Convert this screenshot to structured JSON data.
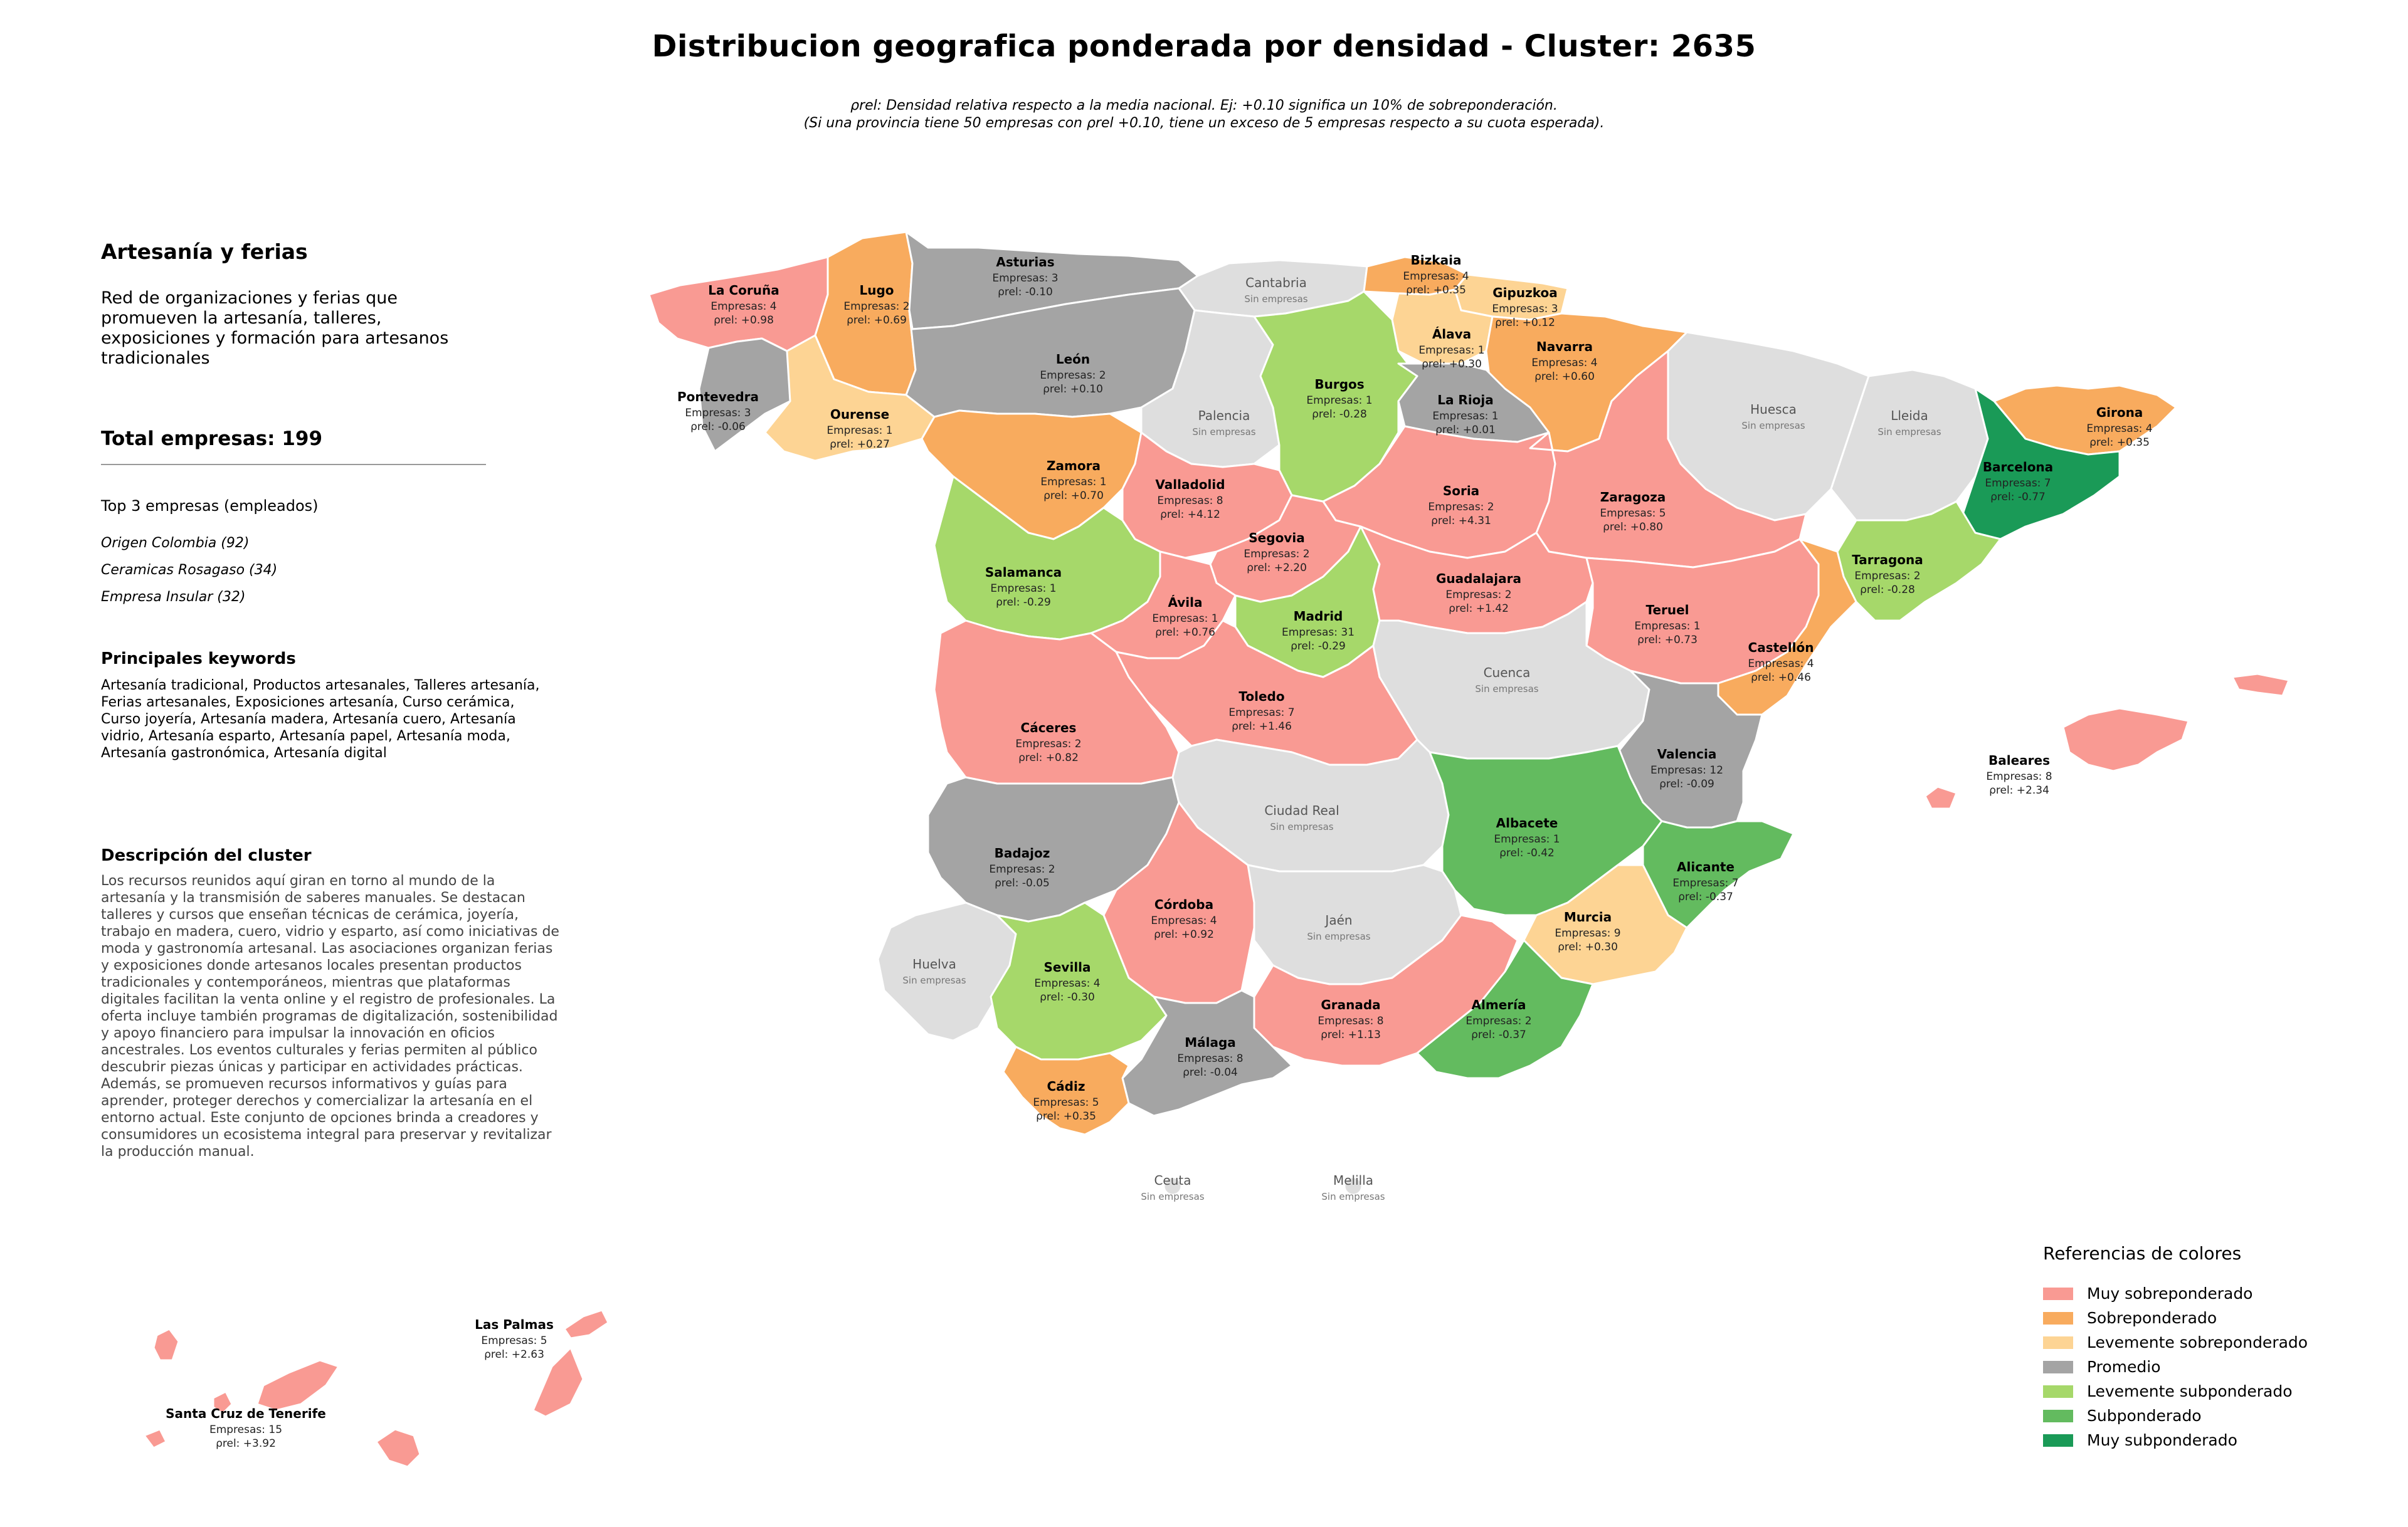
{
  "title": "Distribucion geografica ponderada por densidad - Cluster: 2635",
  "subtitle_line1": "ρrel: Densidad relativa respecto a la media nacional. Ej: +0.10 significa un 10% de sobreponderación.",
  "subtitle_line2": "(Si una provincia tiene 50 empresas con ρrel +0.10, tiene un exceso de 5 empresas respecto a su cuota esperada).",
  "panel": {
    "heading": "Artesanía y ferias",
    "intro": "Red de organizaciones y ferias que promueven la artesanía, talleres, exposiciones y formación para artesanos tradicionales",
    "total_label": "Total empresas: 199",
    "top_label": "Top 3 empresas (empleados)",
    "top_companies": [
      "Origen Colombia (92)",
      "Ceramicas Rosagaso (34)",
      "Empresa Insular (32)"
    ],
    "keywords_heading": "Principales keywords",
    "keywords": "Artesanía tradicional, Productos artesanales, Talleres artesanía, Ferias artesanales, Exposiciones artesanía, Curso cerámica, Curso joyería, Artesanía madera, Artesanía cuero, Artesanía vidrio, Artesanía esparto, Artesanía papel, Artesanía moda, Artesanía gastronómica, Artesanía digital",
    "description_heading": "Descripción del cluster",
    "description": "Los recursos reunidos aquí giran en torno al mundo de la artesanía y la transmisión de saberes manuales. Se destacan talleres y cursos que enseñan técnicas de cerámica, joyería, trabajo en madera, cuero, vidrio y esparto, así como iniciativas de moda y gastronomía artesanal. Las asociaciones organizan ferias y exposiciones donde artesanos locales presentan productos tradicionales y contemporáneos, mientras que plataformas digitales facilitan la venta online y el registro de profesionales. La oferta incluye también programas de digitalización, sostenibilidad y apoyo financiero para impulsar la innovación en oficios ancestrales. Los eventos culturales y ferias permiten al público descubrir piezas únicas y participar en actividades prácticas. Además, se promueven recursos informativos y guías para aprender, proteger derechos y comercializar la artesanía en el entorno actual. Este conjunto de opciones brinda a creadores y consumidores un ecosistema integral para preservar y revitalizar la producción manual."
  },
  "colors": {
    "muy_sobre": "#f99a93",
    "sobre": "#f8ab5e",
    "lev_sobre": "#fdd494",
    "promedio": "#a4a4a4",
    "lev_sub": "#a6d86a",
    "sub": "#63bb5f",
    "muy_sub": "#1a9a57",
    "sin": "#dedede"
  },
  "no_companies_text": "Sin empresas",
  "provinces": [
    {
      "name": "La Coruña",
      "cat": "muy_sobre",
      "line1": "Empresas: 4",
      "line2": "ρrel: +0.98"
    },
    {
      "name": "Lugo",
      "cat": "sobre",
      "line1": "Empresas: 2",
      "line2": "ρrel: +0.69"
    },
    {
      "name": "Asturias",
      "cat": "promedio",
      "line1": "Empresas: 3",
      "line2": "ρrel: -0.10"
    },
    {
      "name": "Cantabria",
      "cat": "sin",
      "line1": "Sin empresas",
      "line2": ""
    },
    {
      "name": "Bizkaia",
      "cat": "sobre",
      "line1": "Empresas: 4",
      "line2": "ρrel: +0.35"
    },
    {
      "name": "Gipuzkoa",
      "cat": "lev_sobre",
      "line1": "Empresas: 3",
      "line2": "ρrel: +0.12"
    },
    {
      "name": "Álava",
      "cat": "lev_sobre",
      "line1": "Empresas: 1",
      "line2": "ρrel: +0.30"
    },
    {
      "name": "Navarra",
      "cat": "sobre",
      "line1": "Empresas: 4",
      "line2": "ρrel: +0.60"
    },
    {
      "name": "Pontevedra",
      "cat": "promedio",
      "line1": "Empresas: 3",
      "line2": "ρrel: -0.06"
    },
    {
      "name": "Ourense",
      "cat": "lev_sobre",
      "line1": "Empresas: 1",
      "line2": "ρrel: +0.27"
    },
    {
      "name": "León",
      "cat": "promedio",
      "line1": "Empresas: 2",
      "line2": "ρrel: +0.10"
    },
    {
      "name": "Palencia",
      "cat": "sin",
      "line1": "Sin empresas",
      "line2": ""
    },
    {
      "name": "Burgos",
      "cat": "lev_sub",
      "line1": "Empresas: 1",
      "line2": "ρrel: -0.28"
    },
    {
      "name": "La Rioja",
      "cat": "promedio",
      "line1": "Empresas: 1",
      "line2": "ρrel: +0.01"
    },
    {
      "name": "Huesca",
      "cat": "sin",
      "line1": "Sin empresas",
      "line2": ""
    },
    {
      "name": "Lleida",
      "cat": "sin",
      "line1": "Sin empresas",
      "line2": ""
    },
    {
      "name": "Girona",
      "cat": "sobre",
      "line1": "Empresas: 4",
      "line2": "ρrel: +0.35"
    },
    {
      "name": "Barcelona",
      "cat": "muy_sub",
      "line1": "Empresas: 7",
      "line2": "ρrel: -0.77"
    },
    {
      "name": "Zamora",
      "cat": "sobre",
      "line1": "Empresas: 1",
      "line2": "ρrel: +0.70"
    },
    {
      "name": "Valladolid",
      "cat": "muy_sobre",
      "line1": "Empresas: 8",
      "line2": "ρrel: +4.12"
    },
    {
      "name": "Soria",
      "cat": "muy_sobre",
      "line1": "Empresas: 2",
      "line2": "ρrel: +4.31"
    },
    {
      "name": "Zaragoza",
      "cat": "muy_sobre",
      "line1": "Empresas: 5",
      "line2": "ρrel: +0.80"
    },
    {
      "name": "Tarragona",
      "cat": "lev_sub",
      "line1": "Empresas: 2",
      "line2": "ρrel: -0.28"
    },
    {
      "name": "Salamanca",
      "cat": "lev_sub",
      "line1": "Empresas: 1",
      "line2": "ρrel: -0.29"
    },
    {
      "name": "Segovia",
      "cat": "muy_sobre",
      "line1": "Empresas: 2",
      "line2": "ρrel: +2.20"
    },
    {
      "name": "Ávila",
      "cat": "muy_sobre",
      "line1": "Empresas: 1",
      "line2": "ρrel: +0.76"
    },
    {
      "name": "Madrid",
      "cat": "lev_sub",
      "line1": "Empresas: 31",
      "line2": "ρrel: -0.29"
    },
    {
      "name": "Guadalajara",
      "cat": "muy_sobre",
      "line1": "Empresas: 2",
      "line2": "ρrel: +1.42"
    },
    {
      "name": "Teruel",
      "cat": "muy_sobre",
      "line1": "Empresas: 1",
      "line2": "ρrel: +0.73"
    },
    {
      "name": "Castellón",
      "cat": "sobre",
      "line1": "Empresas: 4",
      "line2": "ρrel: +0.46"
    },
    {
      "name": "Cáceres",
      "cat": "muy_sobre",
      "line1": "Empresas: 2",
      "line2": "ρrel: +0.82"
    },
    {
      "name": "Toledo",
      "cat": "muy_sobre",
      "line1": "Empresas: 7",
      "line2": "ρrel: +1.46"
    },
    {
      "name": "Cuenca",
      "cat": "sin",
      "line1": "Sin empresas",
      "line2": ""
    },
    {
      "name": "Valencia",
      "cat": "promedio",
      "line1": "Empresas: 12",
      "line2": "ρrel: -0.09"
    },
    {
      "name": "Baleares",
      "cat": "muy_sobre",
      "line1": "Empresas: 8",
      "line2": "ρrel: +2.34"
    },
    {
      "name": "Badajoz",
      "cat": "promedio",
      "line1": "Empresas: 2",
      "line2": "ρrel: -0.05"
    },
    {
      "name": "Ciudad Real",
      "cat": "sin",
      "line1": "Sin empresas",
      "line2": ""
    },
    {
      "name": "Albacete",
      "cat": "sub",
      "line1": "Empresas: 1",
      "line2": "ρrel: -0.42"
    },
    {
      "name": "Alicante",
      "cat": "sub",
      "line1": "Empresas: 7",
      "line2": "ρrel: -0.37"
    },
    {
      "name": "Córdoba",
      "cat": "muy_sobre",
      "line1": "Empresas: 4",
      "line2": "ρrel: +0.92"
    },
    {
      "name": "Jaén",
      "cat": "sin",
      "line1": "Sin empresas",
      "line2": ""
    },
    {
      "name": "Murcia",
      "cat": "lev_sobre",
      "line1": "Empresas: 9",
      "line2": "ρrel: +0.30"
    },
    {
      "name": "Huelva",
      "cat": "sin",
      "line1": "Sin empresas",
      "line2": ""
    },
    {
      "name": "Sevilla",
      "cat": "lev_sub",
      "line1": "Empresas: 4",
      "line2": "ρrel: -0.30"
    },
    {
      "name": "Granada",
      "cat": "muy_sobre",
      "line1": "Empresas: 8",
      "line2": "ρrel: +1.13"
    },
    {
      "name": "Almería",
      "cat": "sub",
      "line1": "Empresas: 2",
      "line2": "ρrel: -0.37"
    },
    {
      "name": "Málaga",
      "cat": "promedio",
      "line1": "Empresas: 8",
      "line2": "ρrel: -0.04"
    },
    {
      "name": "Cádiz",
      "cat": "sobre",
      "line1": "Empresas: 5",
      "line2": "ρrel: +0.35"
    },
    {
      "name": "Ceuta",
      "cat": "sin",
      "line1": "Sin empresas",
      "line2": ""
    },
    {
      "name": "Melilla",
      "cat": "sin",
      "line1": "Sin empresas",
      "line2": ""
    },
    {
      "name": "Las Palmas",
      "cat": "muy_sobre",
      "line1": "Empresas: 5",
      "line2": "ρrel: +2.63"
    },
    {
      "name": "Santa Cruz de Tenerife",
      "cat": "muy_sobre",
      "line1": "Empresas: 15",
      "line2": "ρrel: +3.92"
    }
  ],
  "legend": {
    "title": "Referencias de colores",
    "items": [
      {
        "label": "Muy sobreponderado",
        "color": "#f99a93"
      },
      {
        "label": "Sobreponderado",
        "color": "#f8ab5e"
      },
      {
        "label": "Levemente sobreponderado",
        "color": "#fdd494"
      },
      {
        "label": "Promedio",
        "color": "#a4a4a4"
      },
      {
        "label": "Levemente subponderado",
        "color": "#a6d86a"
      },
      {
        "label": "Subponderado",
        "color": "#63bb5f"
      },
      {
        "label": "Muy subponderado",
        "color": "#1a9a57"
      }
    ]
  }
}
